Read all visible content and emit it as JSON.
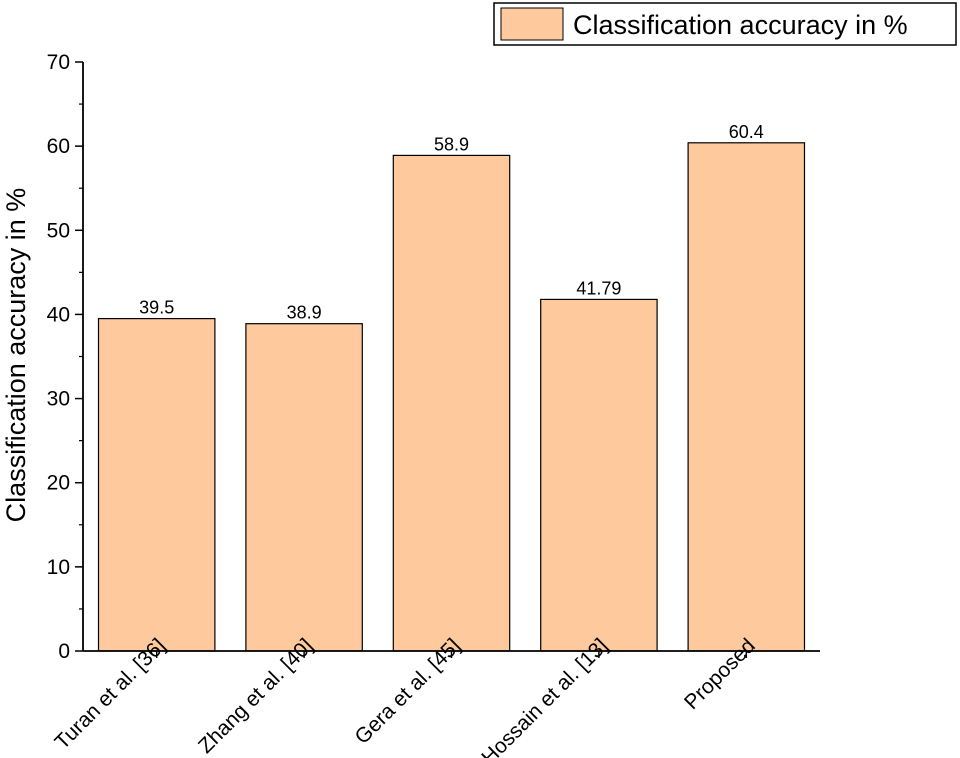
{
  "chart_data": {
    "type": "bar",
    "categories": [
      "Turan et al. [36]",
      "Zhang et al. [40]",
      "Gera et al. [45]",
      "Hossain et al. [13]",
      "Proposed"
    ],
    "series": [
      {
        "name": "Classification accuracy in %",
        "values": [
          39.5,
          38.9,
          58.9,
          41.79,
          60.4
        ],
        "value_labels": [
          "39.5",
          "38.9",
          "58.9",
          "41.79",
          "60.4"
        ],
        "color": "#FFC99E"
      }
    ],
    "xlabel": "",
    "ylabel": "Classification accuracy in %",
    "ylim": [
      0,
      70
    ],
    "yticks": [
      0,
      10,
      20,
      30,
      40,
      50,
      60,
      70
    ],
    "grid": false,
    "legend_position": "top-right",
    "bar_outline_color": "#000000"
  }
}
